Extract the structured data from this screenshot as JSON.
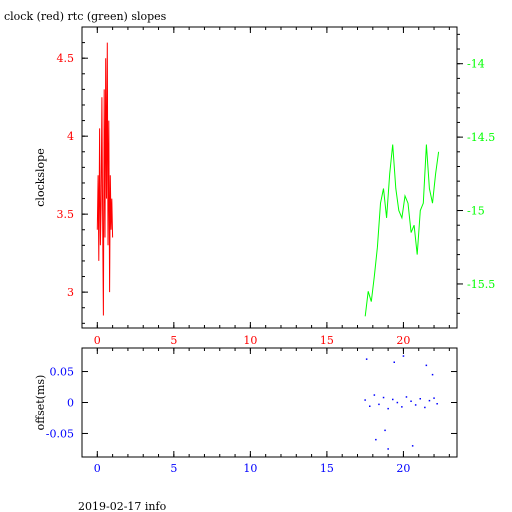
{
  "title": "clock (red) rtc (green) slopes",
  "footer": "2019-02-17 info",
  "colors": {
    "red": "#ff0000",
    "green": "#00ff00",
    "blue": "#0000ff",
    "axis": "#000000"
  },
  "chart_data": [
    {
      "type": "line",
      "title": "clock (red) rtc (green) slopes",
      "ylabel": "clockslope",
      "xlim": [
        -1,
        23.5
      ],
      "xticks": [
        0,
        5,
        10,
        15,
        20
      ],
      "xtick_labels": [
        "0",
        "5",
        "10",
        "15",
        "20"
      ],
      "ylim": [
        2.77,
        4.7
      ],
      "yticks": [
        3,
        3.5,
        4,
        4.5
      ],
      "ytick_labels": [
        "3",
        "3.5",
        "4",
        "4.5"
      ],
      "y2lim": [
        -15.8,
        -13.75
      ],
      "y2ticks": [
        -14,
        -14.5,
        -15,
        -15.5
      ],
      "y2tick_labels": [
        "-14",
        "-14.5",
        "-15",
        "-15.5"
      ],
      "grid": false,
      "series": [
        {
          "color": "#ff0000",
          "axis": "left",
          "x": [
            0.0,
            0.05,
            0.1,
            0.15,
            0.2,
            0.25,
            0.3,
            0.35,
            0.4,
            0.45,
            0.5,
            0.55,
            0.6,
            0.65,
            0.7,
            0.75,
            0.8,
            0.85,
            0.9,
            0.95,
            1.0
          ],
          "y": [
            3.4,
            3.75,
            3.2,
            4.05,
            3.3,
            3.55,
            4.25,
            3.4,
            2.85,
            4.3,
            3.35,
            4.5,
            3.6,
            4.6,
            3.3,
            4.1,
            3.0,
            3.75,
            3.4,
            3.6,
            3.35
          ]
        },
        {
          "color": "#00ff00",
          "axis": "right",
          "x": [
            17.5,
            17.7,
            17.9,
            18.1,
            18.3,
            18.5,
            18.7,
            18.9,
            19.1,
            19.3,
            19.5,
            19.7,
            19.9,
            20.1,
            20.3,
            20.5,
            20.7,
            20.9,
            21.1,
            21.3,
            21.5,
            21.7,
            21.9,
            22.1,
            22.3
          ],
          "y": [
            -15.72,
            -15.55,
            -15.62,
            -15.45,
            -15.25,
            -14.95,
            -14.85,
            -15.05,
            -14.75,
            -14.55,
            -14.85,
            -15.0,
            -15.05,
            -14.9,
            -14.95,
            -15.15,
            -15.1,
            -15.3,
            -15.0,
            -14.95,
            -14.55,
            -14.85,
            -14.95,
            -14.75,
            -14.6
          ]
        }
      ]
    },
    {
      "type": "scatter",
      "ylabel": "offset(ms)",
      "xlim": [
        -1,
        23.5
      ],
      "xticks": [
        0,
        5,
        10,
        15,
        20
      ],
      "xtick_labels": [
        "0",
        "5",
        "10",
        "15",
        "20"
      ],
      "ylim": [
        -0.088,
        0.088
      ],
      "yticks": [
        0.05,
        0,
        -0.05
      ],
      "ytick_labels": [
        "0.05",
        "0",
        "-0.05"
      ],
      "grid": false,
      "series": [
        {
          "color": "#0000ff",
          "x_range": [
            17.4,
            22.3
          ],
          "points": [
            [
              17.5,
              0.004
            ],
            [
              17.8,
              -0.006
            ],
            [
              18.1,
              0.012
            ],
            [
              18.4,
              -0.003
            ],
            [
              18.7,
              0.008
            ],
            [
              19.0,
              -0.01
            ],
            [
              19.3,
              0.005
            ],
            [
              19.6,
              0.0
            ],
            [
              19.9,
              -0.007
            ],
            [
              20.2,
              0.009
            ],
            [
              20.5,
              0.002
            ],
            [
              20.8,
              -0.004
            ],
            [
              21.1,
              0.006
            ],
            [
              21.4,
              -0.008
            ],
            [
              21.7,
              0.003
            ],
            [
              22.0,
              0.007
            ],
            [
              22.2,
              -0.002
            ],
            [
              17.6,
              0.07
            ],
            [
              18.2,
              -0.06
            ],
            [
              19.4,
              0.065
            ],
            [
              20.6,
              -0.07
            ],
            [
              21.5,
              0.06
            ],
            [
              19.0,
              -0.075
            ],
            [
              20.0,
              0.075
            ],
            [
              18.8,
              -0.045
            ],
            [
              21.9,
              0.045
            ]
          ]
        }
      ]
    }
  ]
}
